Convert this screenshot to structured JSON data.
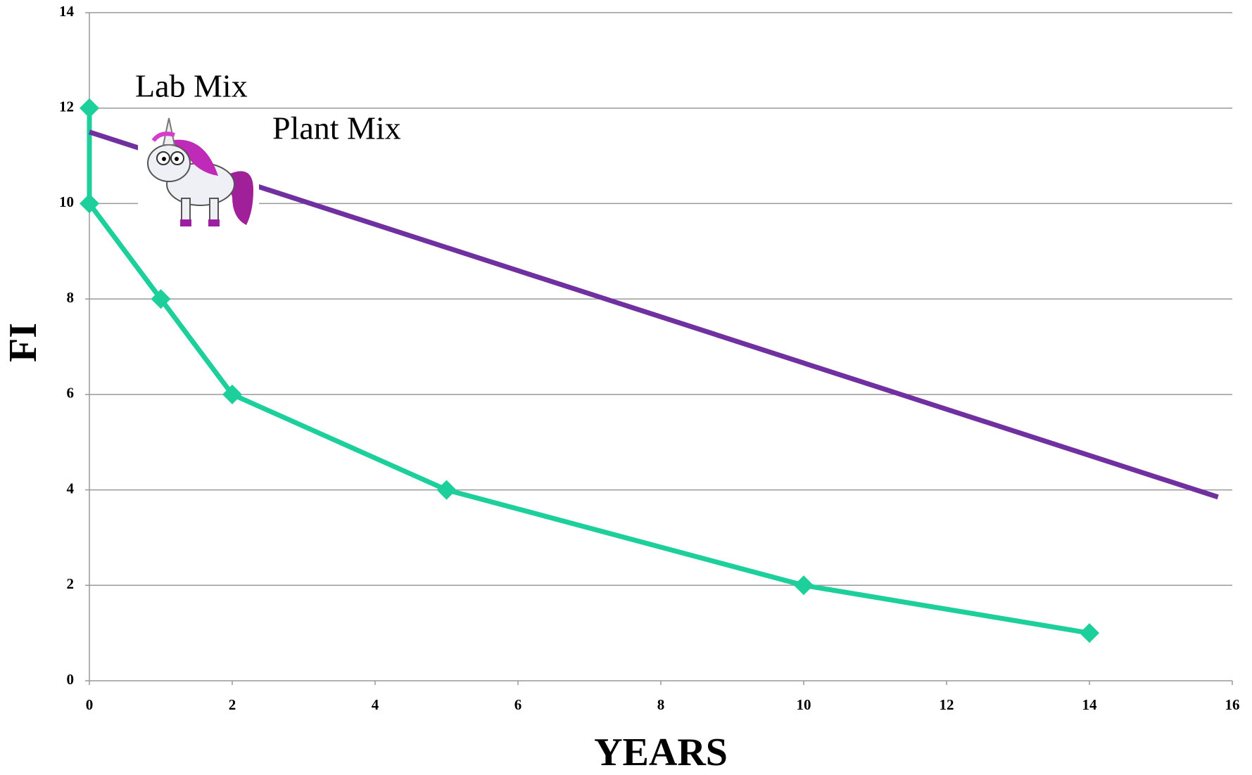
{
  "chart_data": {
    "type": "line",
    "x_label": "YEARS",
    "y_label": "FI",
    "xlim": [
      0,
      16
    ],
    "xticks": [
      0,
      2,
      4,
      6,
      8,
      10,
      12,
      14,
      16
    ],
    "ylim": [
      0,
      14
    ],
    "yticks": [
      0,
      2,
      4,
      6,
      8,
      10,
      12,
      14
    ],
    "grid": true,
    "series": [
      {
        "name": "Lab Mix",
        "color": "#1ccf9b",
        "marker": "diamond",
        "x": [
          0,
          0,
          1,
          2,
          5,
          10,
          14
        ],
        "values": [
          12,
          10,
          8,
          6,
          4,
          2,
          1
        ]
      },
      {
        "name": "Plant Mix",
        "color": "#7030a0",
        "marker": "none",
        "x": [
          0,
          15.8
        ],
        "values": [
          11.5,
          3.85
        ]
      }
    ]
  }
}
